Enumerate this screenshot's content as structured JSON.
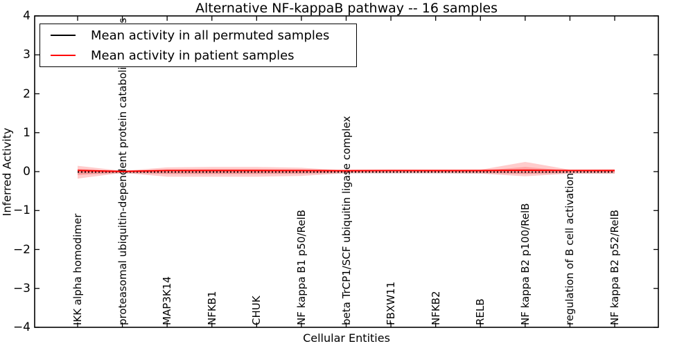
{
  "chart_data": {
    "type": "line",
    "title": "Alternative NF-kappaB pathway -- 16 samples",
    "xlabel": "Cellular Entities",
    "ylabel": "Inferred Activity",
    "ylim": [
      -4,
      4
    ],
    "ytick_values": [
      4,
      3,
      2,
      1,
      0,
      -1,
      -2,
      -3,
      -4
    ],
    "ytick_labels": [
      "4",
      "3",
      "2",
      "1",
      "0",
      "−1",
      "−2",
      "−3",
      "−4"
    ],
    "grid": false,
    "legend_position": "upper left",
    "categories": [
      "IKK alpha homodimer",
      "proteasomal ubiquitin-dependent protein catabolic process",
      "MAP3K14",
      "NFKB1",
      "CHUK",
      "NF kappa B1 p50/RelB",
      "beta TrCP1/SCF ubiquitin ligase complex",
      "FBXW11",
      "NFKB2",
      "RELB",
      "NF kappa B2 p100/RelB",
      "regulation of B cell activation",
      "NF kappa B2 p52/RelB"
    ],
    "series": [
      {
        "name": "Mean activity in all permuted samples",
        "color": "#000000",
        "linestyle": "dotted",
        "values": [
          -0.01,
          -0.01,
          -0.01,
          -0.01,
          -0.01,
          -0.01,
          -0.01,
          -0.01,
          -0.01,
          -0.01,
          -0.01,
          -0.01,
          -0.01
        ],
        "band_halfwidth": 0.045
      },
      {
        "name": "Mean activity in patient samples",
        "color": "#ff0000",
        "linestyle": "solid",
        "values": [
          0.03,
          0.005,
          0.03,
          0.03,
          0.03,
          0.03,
          0.025,
          0.03,
          0.03,
          0.03,
          0.035,
          0.03,
          0.03
        ],
        "band_outer_upper": [
          0.15,
          0.02,
          0.11,
          0.12,
          0.12,
          0.1,
          0.03,
          0.04,
          0.04,
          0.05,
          0.25,
          0.05,
          0.06
        ],
        "band_outer_lower": [
          -0.18,
          -0.03,
          -0.13,
          -0.13,
          -0.13,
          -0.11,
          -0.04,
          -0.04,
          -0.04,
          -0.05,
          -0.12,
          -0.05,
          -0.05
        ],
        "band_inner_upper": [
          0.07,
          0.01,
          0.05,
          0.06,
          0.06,
          0.05,
          0.015,
          0.02,
          0.02,
          0.025,
          0.12,
          0.025,
          0.03
        ],
        "band_inner_lower": [
          -0.09,
          -0.015,
          -0.06,
          -0.06,
          -0.06,
          -0.05,
          -0.02,
          -0.02,
          -0.02,
          -0.025,
          -0.06,
          -0.025,
          -0.025
        ]
      }
    ]
  },
  "colors": {
    "patient_band": "rgba(255,0,0,0.20)",
    "permuted_band": "rgba(0,0,0,0.10)",
    "axis": "#000000",
    "background": "#ffffff"
  }
}
